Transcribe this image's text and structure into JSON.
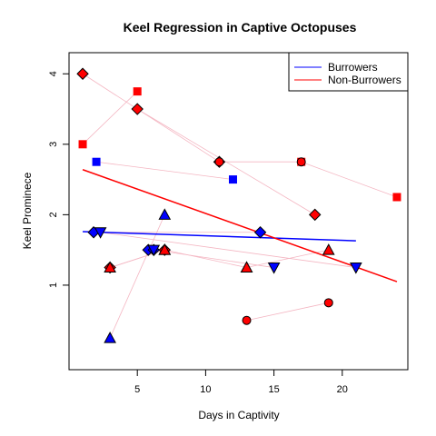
{
  "chart_data": {
    "type": "scatter",
    "title": "Keel Regression in Captive Octopuses",
    "xlabel": "Days in Captivity",
    "ylabel": "Keel Prominece",
    "xlim": [
      0,
      24.8
    ],
    "ylim": [
      -0.2,
      4.3
    ],
    "x_ticks": [
      5,
      10,
      15,
      20
    ],
    "y_ticks": [
      1,
      2,
      3,
      4
    ],
    "legend_position": "top-right",
    "colors": {
      "burrowers": "#0000ff",
      "non_burrowers": "#ff0000",
      "connector": "#f4b6c2"
    },
    "series": [
      {
        "name": "Burrowers",
        "color": "#0000ff",
        "regression": {
          "x": [
            1,
            21
          ],
          "y": [
            1.76,
            1.63
          ]
        },
        "individuals": [
          {
            "shape": "square",
            "points": [
              [
                2,
                2.75
              ],
              [
                12,
                2.5
              ]
            ]
          },
          {
            "shape": "diamond",
            "points": [
              [
                1.8,
                1.75
              ],
              [
                14,
                1.75
              ]
            ]
          },
          {
            "shape": "triangle-down",
            "points": [
              [
                2.3,
                1.75
              ],
              [
                21,
                1.25
              ]
            ]
          },
          {
            "shape": "diamond",
            "points": [
              [
                5.8,
                1.5
              ],
              [
                6.2,
                1.5
              ]
            ]
          },
          {
            "shape": "triangle-up",
            "points": [
              [
                7,
                2.0
              ],
              [
                3,
                0.25
              ]
            ]
          },
          {
            "shape": "triangle-down",
            "points": [
              [
                15,
                1.25
              ],
              [
                6.2,
                1.5
              ]
            ]
          }
        ]
      },
      {
        "name": "Non-Burrowers",
        "color": "#ff0000",
        "regression": {
          "x": [
            1,
            24
          ],
          "y": [
            2.64,
            1.05
          ]
        },
        "individuals": [
          {
            "shape": "diamond",
            "points": [
              [
                1,
                4.0
              ],
              [
                11,
                2.75
              ]
            ]
          },
          {
            "shape": "square",
            "points": [
              [
                5,
                3.75
              ],
              [
                1,
                3.0
              ]
            ]
          },
          {
            "shape": "diamond",
            "points": [
              [
                5,
                3.5
              ],
              [
                18,
                2.0
              ]
            ]
          },
          {
            "shape": "square",
            "points": [
              [
                17,
                2.75
              ],
              [
                24,
                2.25
              ]
            ]
          },
          {
            "shape": "circle",
            "points": [
              [
                11,
                2.75
              ],
              [
                17,
                2.75
              ]
            ]
          },
          {
            "shape": "diamond",
            "points": [
              [
                3,
                1.25
              ],
              [
                7,
                1.5
              ]
            ]
          },
          {
            "shape": "triangle-up",
            "points": [
              [
                3,
                1.25
              ],
              [
                7,
                1.5
              ]
            ]
          },
          {
            "shape": "triangle-up",
            "points": [
              [
                13,
                1.25
              ],
              [
                19,
                1.5
              ]
            ]
          },
          {
            "shape": "triangle-up",
            "points": [
              [
                7,
                1.5
              ],
              [
                13,
                1.25
              ]
            ]
          },
          {
            "shape": "circle",
            "points": [
              [
                13,
                0.5
              ],
              [
                19,
                0.75
              ]
            ]
          }
        ]
      }
    ]
  }
}
